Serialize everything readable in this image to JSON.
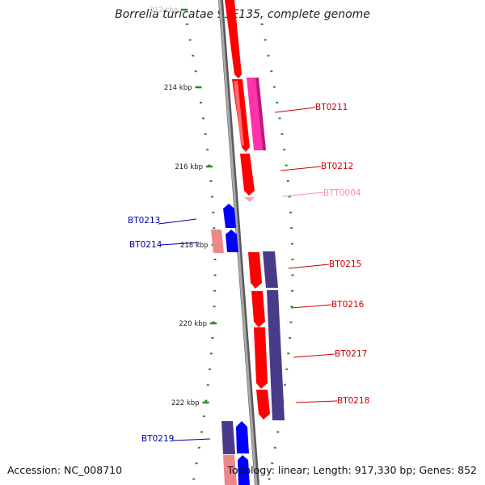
{
  "title": "Borrelia turicatae 91E135, complete genome",
  "footer": {
    "accession": "Accession: NC_008710",
    "stats": "Topology: linear; Length: 917,330 bp; Genes: 852"
  },
  "colors": {
    "backbone": "#8a8a8a",
    "tick": "#2a8a2a",
    "forward_gene": "#ff0000",
    "forward_label": "#cc0000",
    "reverse_gene": "#0000ff",
    "reverse_label": "#0000aa",
    "trna": "#ff9ad0",
    "operon_purple": "#4a3a8a",
    "operon_pink": "#ff33aa",
    "pseudo_pink": "#ee8888"
  },
  "scale": {
    "ticks": [
      {
        "label": "212 kbp"
      },
      {
        "label": "214 kbp"
      },
      {
        "label": "216 kbp"
      },
      {
        "label": "218 kbp"
      },
      {
        "label": "220 kbp"
      },
      {
        "label": "222 kbp"
      }
    ]
  },
  "genes": [
    {
      "id": "BT0211",
      "strand": "+"
    },
    {
      "id": "BT0212",
      "strand": "+"
    },
    {
      "id": "BTT0004",
      "strand": "+"
    },
    {
      "id": "BT0213",
      "strand": "-"
    },
    {
      "id": "BT0214",
      "strand": "-"
    },
    {
      "id": "BT0215",
      "strand": "+"
    },
    {
      "id": "BT0216",
      "strand": "+"
    },
    {
      "id": "BT0217",
      "strand": "+"
    },
    {
      "id": "BT0218",
      "strand": "+"
    },
    {
      "id": "BT0219",
      "strand": "-"
    }
  ]
}
